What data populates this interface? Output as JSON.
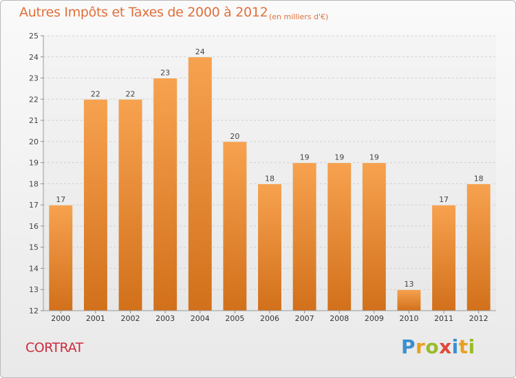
{
  "header": {
    "title": "Autres Impôts et Taxes de 2000 à 2012",
    "subtitle": "(en milliers d'€)"
  },
  "footer": {
    "commune": "CORTRAT",
    "brand": "Proxiti"
  },
  "colors": {
    "bar_light": "#f7a24f",
    "bar_dark": "#d2701b",
    "title": "#e0703a",
    "commune": "#cc2a3d"
  },
  "chart_data": {
    "type": "bar",
    "title": "Autres Impôts et Taxes de 2000 à 2012",
    "subtitle": "(en milliers d'€)",
    "categories": [
      "2000",
      "2001",
      "2002",
      "2003",
      "2004",
      "2005",
      "2006",
      "2007",
      "2008",
      "2009",
      "2010",
      "2011",
      "2012"
    ],
    "values": [
      17,
      22,
      22,
      23,
      24,
      20,
      18,
      19,
      19,
      19,
      13,
      17,
      18
    ],
    "ylim": [
      12,
      25
    ],
    "yticks": [
      12,
      13,
      14,
      15,
      16,
      17,
      18,
      19,
      20,
      21,
      22,
      23,
      24,
      25
    ],
    "grid": true,
    "legend": "none"
  }
}
